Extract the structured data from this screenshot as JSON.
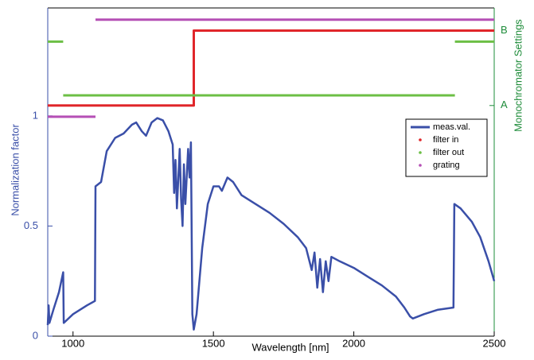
{
  "chart_data": {
    "type": "line",
    "xlabel": "Wavelength [nm]",
    "ylabel": "Normalization factor",
    "y2label": "Monochromator Settings",
    "xlim": [
      910,
      2500
    ],
    "xticks": [
      1000,
      1500,
      2000,
      2500
    ],
    "ylim": [
      0,
      1.49
    ],
    "yticks": [
      0,
      0.5,
      1
    ],
    "y2lim": [
      0,
      1.49
    ],
    "y2ticks": [
      {
        "value": 1.047,
        "label": "A"
      },
      {
        "value": 1.387,
        "label": "B"
      }
    ],
    "legend": "right",
    "series": [
      {
        "name": "meas.val.",
        "color": "#3a4fa8",
        "x": [
          910,
          913,
          916,
          930,
          950,
          965,
          967,
          1000,
          1050,
          1078,
          1080,
          1100,
          1120,
          1150,
          1180,
          1210,
          1225,
          1245,
          1260,
          1280,
          1300,
          1320,
          1340,
          1355,
          1360,
          1365,
          1370,
          1380,
          1385,
          1390,
          1395,
          1400,
          1410,
          1415,
          1420,
          1425,
          1430,
          1440,
          1460,
          1480,
          1500,
          1520,
          1530,
          1550,
          1570,
          1600,
          1650,
          1700,
          1750,
          1800,
          1830,
          1850,
          1860,
          1870,
          1880,
          1890,
          1900,
          1910,
          1920,
          1950,
          2000,
          2050,
          2100,
          2150,
          2180,
          2200,
          2210,
          2250,
          2300,
          2355,
          2358,
          2380,
          2420,
          2450,
          2480,
          2500
        ],
        "values": [
          0.05,
          0.14,
          0.06,
          0.12,
          0.2,
          0.29,
          0.06,
          0.1,
          0.14,
          0.16,
          0.68,
          0.7,
          0.84,
          0.9,
          0.92,
          0.96,
          0.97,
          0.93,
          0.91,
          0.97,
          0.99,
          0.98,
          0.93,
          0.87,
          0.65,
          0.8,
          0.58,
          0.85,
          0.62,
          0.5,
          0.78,
          0.6,
          0.85,
          0.72,
          0.88,
          0.1,
          0.03,
          0.1,
          0.4,
          0.6,
          0.68,
          0.68,
          0.66,
          0.72,
          0.7,
          0.64,
          0.6,
          0.56,
          0.51,
          0.45,
          0.4,
          0.3,
          0.38,
          0.22,
          0.35,
          0.2,
          0.34,
          0.25,
          0.36,
          0.34,
          0.31,
          0.27,
          0.23,
          0.18,
          0.13,
          0.09,
          0.08,
          0.1,
          0.12,
          0.13,
          0.6,
          0.58,
          0.52,
          0.45,
          0.34,
          0.25
        ]
      },
      {
        "name": "filter in",
        "color": "#e0262a",
        "axis": "y2",
        "x": [
          910,
          1430,
          1430,
          2500
        ],
        "values": [
          1.047,
          1.047,
          1.387,
          1.387
        ]
      },
      {
        "name": "filter out",
        "color": "#6cbf45",
        "axis": "y2",
        "x": [
          910,
          965,
          965,
          965,
          2360,
          2360,
          2360,
          2500
        ],
        "values": [
          1.337,
          1.337,
          null,
          1.093,
          1.093,
          null,
          1.337,
          1.337
        ]
      },
      {
        "name": "grating",
        "color": "#b54fb5",
        "axis": "y2",
        "x": [
          910,
          1080,
          1080,
          1080,
          2500
        ],
        "values": [
          0.996,
          0.996,
          null,
          1.437,
          1.437
        ]
      }
    ]
  }
}
